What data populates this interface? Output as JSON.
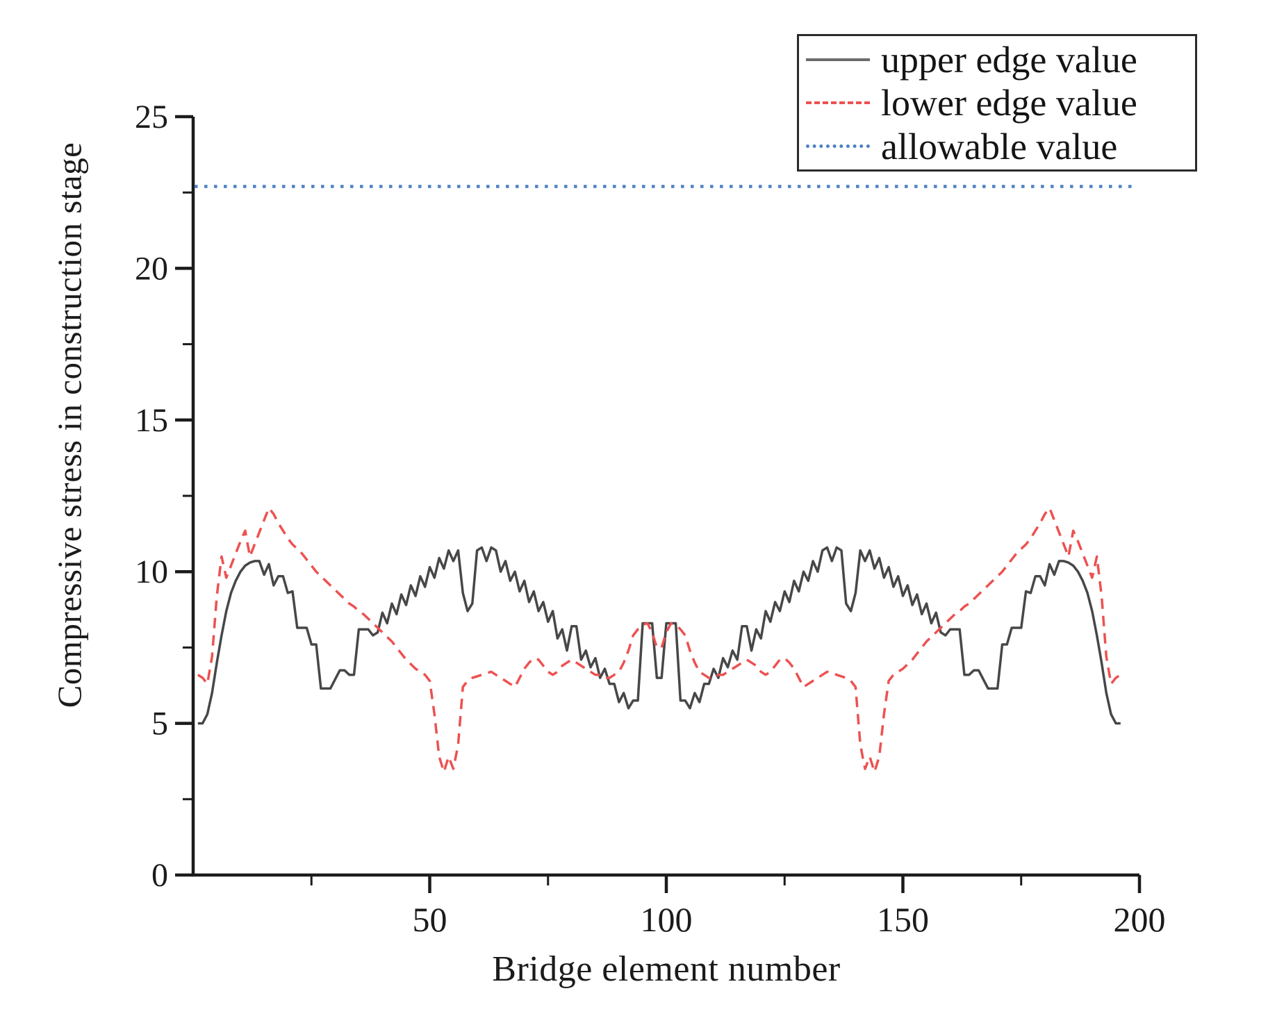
{
  "figure": {
    "background": "#ffffff",
    "axis_color": "#1b1b1b",
    "text_color": "#1b1b1b"
  },
  "chart_data": {
    "type": "line",
    "title": "",
    "xlabel": "Bridge element number",
    "ylabel": "Compressive stress in construction stage",
    "xlim": [
      0,
      200
    ],
    "ylim": [
      0,
      25
    ],
    "grid": false,
    "legend_position": "top-right",
    "x_ticks": {
      "major": [
        50,
        100,
        150,
        200
      ],
      "minor": [
        25,
        75,
        125,
        175
      ]
    },
    "y_ticks": {
      "major": [
        0,
        5,
        10,
        15,
        20,
        25
      ],
      "minor": [
        2.5,
        7.5,
        12.5,
        17.5,
        22.5
      ]
    },
    "series": [
      {
        "name": "upper edge value",
        "type": "line",
        "line_style": "solid",
        "color": "#474747",
        "x_start": 1,
        "x_step": 1,
        "values": [
          5.0,
          5.0,
          5.3,
          6.0,
          7.0,
          7.9,
          8.7,
          9.3,
          9.7,
          10.0,
          10.2,
          10.3,
          10.35,
          10.35,
          9.9,
          10.25,
          9.55,
          9.85,
          9.85,
          9.3,
          9.35,
          8.15,
          8.15,
          8.15,
          7.6,
          7.6,
          6.15,
          6.15,
          6.15,
          6.45,
          6.75,
          6.75,
          6.6,
          6.6,
          8.1,
          8.1,
          8.1,
          7.9,
          8.0,
          8.65,
          8.3,
          8.95,
          8.6,
          9.25,
          8.9,
          9.55,
          9.2,
          9.85,
          9.5,
          10.15,
          9.8,
          10.45,
          10.1,
          10.7,
          10.35,
          10.7,
          9.3,
          8.7,
          8.95,
          10.7,
          10.8,
          10.35,
          10.8,
          10.7,
          10.0,
          10.35,
          9.7,
          10.0,
          9.35,
          9.7,
          9.0,
          9.35,
          8.7,
          9.0,
          8.35,
          8.7,
          7.8,
          8.1,
          7.4,
          8.2,
          8.2,
          7.1,
          7.4,
          6.85,
          7.15,
          6.5,
          6.8,
          6.3,
          6.3,
          5.7,
          6.0,
          5.5,
          5.75,
          5.75,
          8.3,
          8.3,
          8.3,
          6.5,
          6.5,
          8.3,
          8.3,
          8.3,
          5.75,
          5.75,
          5.5,
          6.0,
          5.7,
          6.3,
          6.3,
          6.8,
          6.5,
          7.15,
          6.85,
          7.4,
          7.1,
          8.2,
          8.2,
          7.4,
          8.1,
          7.8,
          8.7,
          8.35,
          9.0,
          8.7,
          9.35,
          9.0,
          9.7,
          9.35,
          10.0,
          9.7,
          10.35,
          10.0,
          10.7,
          10.8,
          10.35,
          10.8,
          10.7,
          8.95,
          8.7,
          9.3,
          10.7,
          10.35,
          10.7,
          10.1,
          10.45,
          9.8,
          10.15,
          9.5,
          9.85,
          9.2,
          9.55,
          8.9,
          9.25,
          8.6,
          8.95,
          8.3,
          8.65,
          8.0,
          7.9,
          8.1,
          8.1,
          8.1,
          6.6,
          6.6,
          6.75,
          6.75,
          6.45,
          6.15,
          6.15,
          6.15,
          7.6,
          7.6,
          8.15,
          8.15,
          8.15,
          9.35,
          9.3,
          9.85,
          9.85,
          9.55,
          10.25,
          9.9,
          10.35,
          10.35,
          10.3,
          10.2,
          10.0,
          9.7,
          9.3,
          8.7,
          7.9,
          7.0,
          6.0,
          5.3,
          5.0,
          5.0
        ]
      },
      {
        "name": "lower edge value",
        "type": "line",
        "line_style": "dashed",
        "color": "#ed5151",
        "x_start": 1,
        "x_step": 1,
        "values": [
          6.6,
          6.5,
          6.3,
          7.2,
          9.2,
          10.5,
          9.8,
          10.2,
          10.6,
          11.0,
          11.35,
          10.5,
          10.9,
          11.3,
          11.7,
          12.1,
          11.9,
          11.6,
          11.35,
          11.1,
          10.9,
          10.75,
          10.6,
          10.4,
          10.2,
          10.0,
          9.85,
          9.7,
          9.55,
          9.4,
          9.25,
          9.1,
          8.95,
          8.85,
          8.7,
          8.6,
          8.45,
          8.3,
          8.15,
          8.0,
          7.85,
          7.7,
          7.5,
          7.3,
          7.1,
          6.95,
          6.8,
          6.7,
          6.6,
          6.4,
          5.3,
          3.9,
          3.4,
          3.9,
          3.5,
          4.3,
          6.2,
          6.4,
          6.5,
          6.55,
          6.6,
          6.65,
          6.7,
          6.6,
          6.5,
          6.4,
          6.3,
          6.2,
          6.5,
          6.8,
          7.0,
          7.15,
          7.1,
          6.9,
          6.7,
          6.6,
          6.7,
          6.9,
          7.0,
          7.1,
          7.0,
          6.9,
          6.8,
          6.7,
          6.6,
          6.6,
          6.5,
          6.5,
          6.6,
          6.7,
          7.0,
          7.4,
          7.9,
          8.1,
          8.25,
          8.3,
          8.0,
          7.5,
          7.5,
          8.0,
          8.3,
          8.25,
          8.1,
          7.9,
          7.4,
          7.0,
          6.7,
          6.6,
          6.5,
          6.5,
          6.6,
          6.6,
          6.7,
          6.8,
          6.9,
          7.0,
          7.1,
          7.0,
          6.9,
          6.7,
          6.6,
          6.7,
          6.9,
          7.1,
          7.15,
          7.0,
          6.8,
          6.5,
          6.2,
          6.3,
          6.4,
          6.5,
          6.6,
          6.7,
          6.65,
          6.6,
          6.55,
          6.5,
          6.4,
          6.2,
          4.3,
          3.5,
          3.9,
          3.4,
          3.9,
          5.3,
          6.4,
          6.6,
          6.7,
          6.8,
          6.95,
          7.1,
          7.3,
          7.5,
          7.7,
          7.85,
          8.0,
          8.15,
          8.3,
          8.45,
          8.6,
          8.7,
          8.85,
          8.95,
          9.1,
          9.25,
          9.4,
          9.55,
          9.7,
          9.85,
          10.0,
          10.2,
          10.4,
          10.6,
          10.75,
          10.9,
          11.1,
          11.35,
          11.6,
          11.9,
          12.1,
          11.7,
          11.3,
          10.9,
          10.5,
          11.35,
          11.0,
          10.6,
          10.2,
          9.8,
          10.5,
          9.2,
          7.2,
          6.3,
          6.5,
          6.6
        ]
      },
      {
        "name": "allowable value",
        "type": "hline",
        "line_style": "dotted",
        "color": "#4d80c4",
        "value": 22.7,
        "x_range": [
          0.3,
          199.6
        ]
      }
    ]
  }
}
